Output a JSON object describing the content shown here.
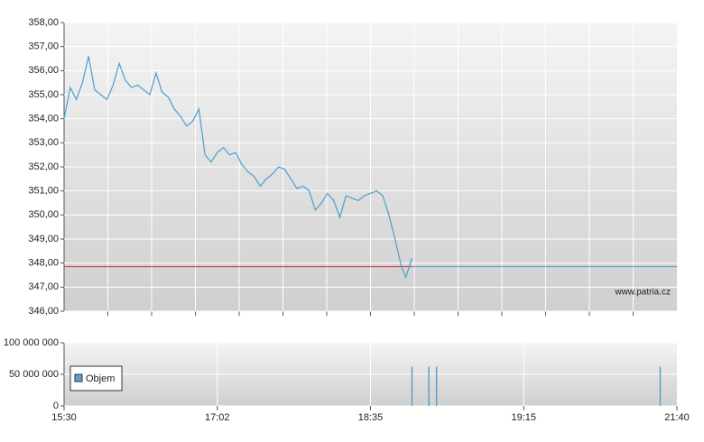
{
  "chart_data": [
    {
      "type": "line",
      "x": [
        0,
        0.04,
        0.08,
        0.12,
        0.16,
        0.2,
        0.24,
        0.28,
        0.32,
        0.36,
        0.4,
        0.44,
        0.48,
        0.52,
        0.56,
        0.6,
        0.64,
        0.68,
        0.72,
        0.76,
        0.8,
        0.84,
        0.88,
        0.92,
        0.96,
        1,
        1.04,
        1.08,
        1.12,
        1.16,
        1.2,
        1.24,
        1.28,
        1.32,
        1.36,
        1.4,
        1.44,
        1.48,
        1.52,
        1.56,
        1.6,
        1.64,
        1.68,
        1.72,
        1.76,
        1.8,
        1.84,
        1.88,
        1.92,
        1.96,
        2,
        2.04,
        2.08,
        2.12,
        2.16,
        2.2,
        2.23,
        2.26,
        2.27
      ],
      "series": [
        {
          "color": "#4a9fd0",
          "values": [
            354.0,
            355.3,
            354.8,
            355.5,
            356.6,
            355.2,
            355.0,
            354.8,
            355.4,
            356.3,
            355.6,
            355.3,
            355.4,
            355.2,
            355.0,
            355.9,
            355.1,
            354.9,
            354.4,
            354.1,
            353.7,
            353.9,
            354.4,
            352.5,
            352.2,
            352.6,
            352.8,
            352.5,
            352.6,
            352.1,
            351.8,
            351.6,
            351.2,
            351.5,
            351.7,
            352.0,
            351.9,
            351.5,
            351.1,
            351.2,
            351.0,
            350.2,
            350.5,
            350.9,
            350.6,
            349.9,
            350.8,
            350.7,
            350.6,
            350.8,
            350.9,
            351.0,
            350.8,
            350.0,
            349.0,
            347.9,
            347.4,
            348.0,
            348.2
          ]
        }
      ],
      "reference": 347.85,
      "reference_color": "#cc3333",
      "xlim": [
        0,
        4
      ],
      "ylim": [
        346,
        358
      ],
      "yticks": [
        {
          "value": 346,
          "label": "346,00"
        },
        {
          "value": 347,
          "label": "347,00"
        },
        {
          "value": 348,
          "label": "348,00"
        },
        {
          "value": 349,
          "label": "349,00"
        },
        {
          "value": 350,
          "label": "350,00"
        },
        {
          "value": 351,
          "label": "351,00"
        },
        {
          "value": 352,
          "label": "352,00"
        },
        {
          "value": 353,
          "label": "353,00"
        },
        {
          "value": 354,
          "label": "354,00"
        },
        {
          "value": 355,
          "label": "355,00"
        },
        {
          "value": 356,
          "label": "356,00"
        },
        {
          "value": 357,
          "label": "357,00"
        },
        {
          "value": 358,
          "label": "358,00"
        }
      ],
      "watermark": "www.patria.cz",
      "grid": true
    },
    {
      "type": "bar",
      "x": [
        2.27,
        2.38,
        2.43,
        3.89
      ],
      "series": [
        {
          "name": "Objem",
          "color": "#5aa0d0",
          "values": [
            62000000,
            62000000,
            62000000,
            62000000
          ]
        }
      ],
      "xlim": [
        0,
        4
      ],
      "xticks": [
        {
          "value": 0,
          "label": "15:30"
        },
        {
          "value": 1,
          "label": "17:02"
        },
        {
          "value": 2,
          "label": "18:35"
        },
        {
          "value": 3,
          "label": "19:15"
        },
        {
          "value": 4,
          "label": "21:40"
        }
      ],
      "ylim": [
        0,
        100000000
      ],
      "yticks": [
        0,
        {
          "value": 50000000,
          "label": "50 000 000"
        },
        {
          "value": 100000000,
          "label": "100 000 000"
        }
      ],
      "grid": true
    }
  ]
}
